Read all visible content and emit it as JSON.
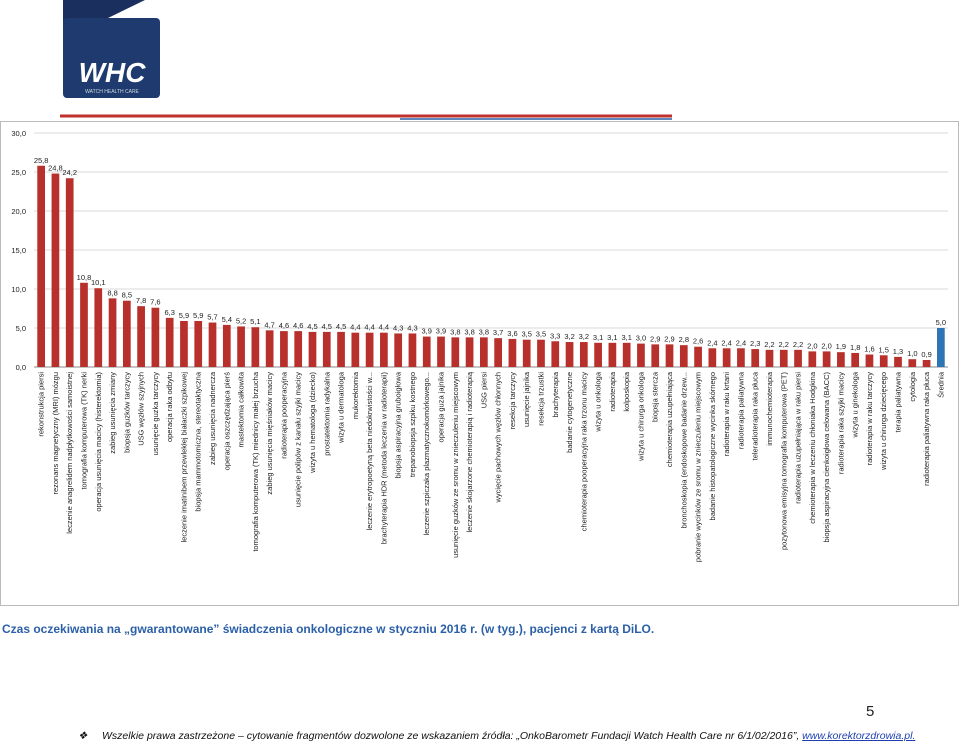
{
  "logo": {
    "mark": "WHC",
    "text": "WATCH HEALTH CARE"
  },
  "chart_data": {
    "type": "bar",
    "categories": [
      "rekonstrukcja piersi",
      "rezonans magnetyczny (MRI) mózgu",
      "leczenie anagrelidem nadpłytkowości samoistnej",
      "tomografia komputerowa (TK) nerki",
      "operacja usunięcia macicy (histerektomia)",
      "zabieg usunięcia zmiany",
      "biopsja guzków tarczycy",
      "USG węzłów szyjnych",
      "usunięcie guzka tarczycy",
      "operacja raka odbytu",
      "leczenie imatinibem przewlekłej białaczki szpikowej",
      "biopsja mammotomiczna, stereotaktyczna",
      "zabieg usunięcia nadnercza",
      "operacja oszczędzająca pierś",
      "mastektomia całkowita",
      "tomografia komputerowa (TK) miednicy małej brzucha",
      "zabieg usunięcia mięśniaków macicy",
      "radioterapia pooperacyjna",
      "usunięcie polipów z kanału szyjki macicy",
      "wizyta u hematologa (dziecko)",
      "prostatektomia radykalna",
      "wizyta u dermatologa",
      "mukorektomia",
      "leczenie erytropoetyną beta niedokrwistości w...",
      "brachyterapia HDR (metoda leczenia w radioterapii)",
      "biopsja aspiracyjna gruboigłowa",
      "trepanobiopsja szpiku kostnego",
      "leczenie szpiczaka plazmatycznokomórkowego...",
      "operacja guza jajnika",
      "usunięcie guzków ze sromu w znieczuleniu miejscowym",
      "leczenie skojarzone chemioterapią i radioterapią",
      "USG piersi",
      "wycięcie pachowych węzłów chłonnych",
      "resekcja tarczycy",
      "usunięcie jajnika",
      "resekcja trzustki",
      "brachyterapia",
      "badanie cytogenetyczne",
      "chemioterapia pooperacyjna raka trzonu macicy",
      "wizyta u onkologa",
      "radioterapia",
      "kolposkopia",
      "wizyta u chirurga onkologa",
      "biopsja stercza",
      "chemioterapia uzupełniająca",
      "bronchoskopia (endoskopowe badanie drzew...",
      "pobranie wycinków ze sromu w znieczuleniu miejscowym",
      "badanie histopatologiczne wycinka skórnego",
      "radioterapia w raku krtani",
      "radioterapia paliatywna",
      "teleradioterapia raka płuca",
      "immunochemioterapia",
      "pozytonowa emisyjna tomografia komputerowa (PET)",
      "radioterapia uzupełniająca w raku piersi",
      "chemioterapia w leczeniu chłoniaka Hodgkina",
      "biopsja aspiracyjna cienkoigłowa celowana (BACC)",
      "radioterapia raka szyjki macicy",
      "wizyta u ginekologa",
      "radioterapia w raku tarczycy",
      "wizyta u chirurga dziecięcego",
      "terapia paliatywna",
      "cytologia",
      "radioterapia paliatywna raka płuca",
      "Średnia"
    ],
    "values": [
      25.8,
      24.8,
      24.2,
      10.8,
      10.1,
      8.8,
      8.5,
      7.8,
      7.6,
      6.3,
      5.9,
      5.9,
      5.7,
      5.4,
      5.2,
      5.1,
      4.7,
      4.6,
      4.6,
      4.5,
      4.5,
      4.5,
      4.4,
      4.4,
      4.4,
      4.3,
      4.3,
      3.9,
      3.9,
      3.8,
      3.8,
      3.8,
      3.7,
      3.6,
      3.5,
      3.5,
      3.3,
      3.2,
      3.2,
      3.1,
      3.1,
      3.1,
      3.0,
      2.9,
      2.9,
      2.8,
      2.6,
      2.4,
      2.4,
      2.4,
      2.3,
      2.2,
      2.2,
      2.2,
      2.0,
      2.0,
      1.9,
      1.8,
      1.6,
      1.5,
      1.3,
      1.0,
      0.9,
      5.0
    ],
    "value_labels": [
      "25,8",
      "24,8",
      "24,2",
      "10,8",
      "10,1",
      "8,8",
      "8,5",
      "7,8",
      "7,6",
      "6,3",
      "5,9",
      "5,9",
      "5,7",
      "5,4",
      "5,2",
      "5,1",
      "4,7",
      "4,6",
      "4,6",
      "4,5",
      "4,5",
      "4,5",
      "4,4",
      "4,4",
      "4,4",
      "4,3",
      "4,3",
      "3,9",
      "3,9",
      "3,8",
      "3,8",
      "3,8",
      "3,7",
      "3,6",
      "3,5",
      "3,5",
      "3,3",
      "3,2",
      "3,2",
      "3,1",
      "3,1",
      "3,1",
      "3,0",
      "2,9",
      "2,9",
      "2,8",
      "2,6",
      "2,4",
      "2,4",
      "2,4",
      "2,3",
      "2,2",
      "2,2",
      "2,2",
      "2,0",
      "2,0",
      "1,9",
      "1,8",
      "1,6",
      "1,5",
      "1,3",
      "1,0",
      "0,9",
      "5,0"
    ],
    "color": "#b8302b",
    "highlight_color": "#2e75b6",
    "highlight_category": "Średnia",
    "ylim": [
      0,
      30
    ],
    "yticks": [
      {
        "value": 0,
        "label": "0,0"
      },
      {
        "value": 5,
        "label": "5,0"
      },
      {
        "value": 10,
        "label": "10,0"
      },
      {
        "value": 15,
        "label": "15,0"
      },
      {
        "value": 20,
        "label": "20,0"
      },
      {
        "value": 25,
        "label": "25,0"
      },
      {
        "value": 30,
        "label": "30,0"
      }
    ],
    "grid": true
  },
  "caption": "Czas oczekiwania na „gwarantowane” świadczenia onkologiczne w styczniu 2016 r. (w tyg.), pacjenci z kartą DiLO.",
  "page_number": "5",
  "footer": {
    "text": "Wszelkie prawa zastrzeżone – cytowanie fragmentów dozwolone ze wskazaniem źródła: „OnkoBarometr Fundacji Watch Health Care nr 6/1/02/2016”,",
    "link": "www.korektorzdrowia.pl."
  }
}
